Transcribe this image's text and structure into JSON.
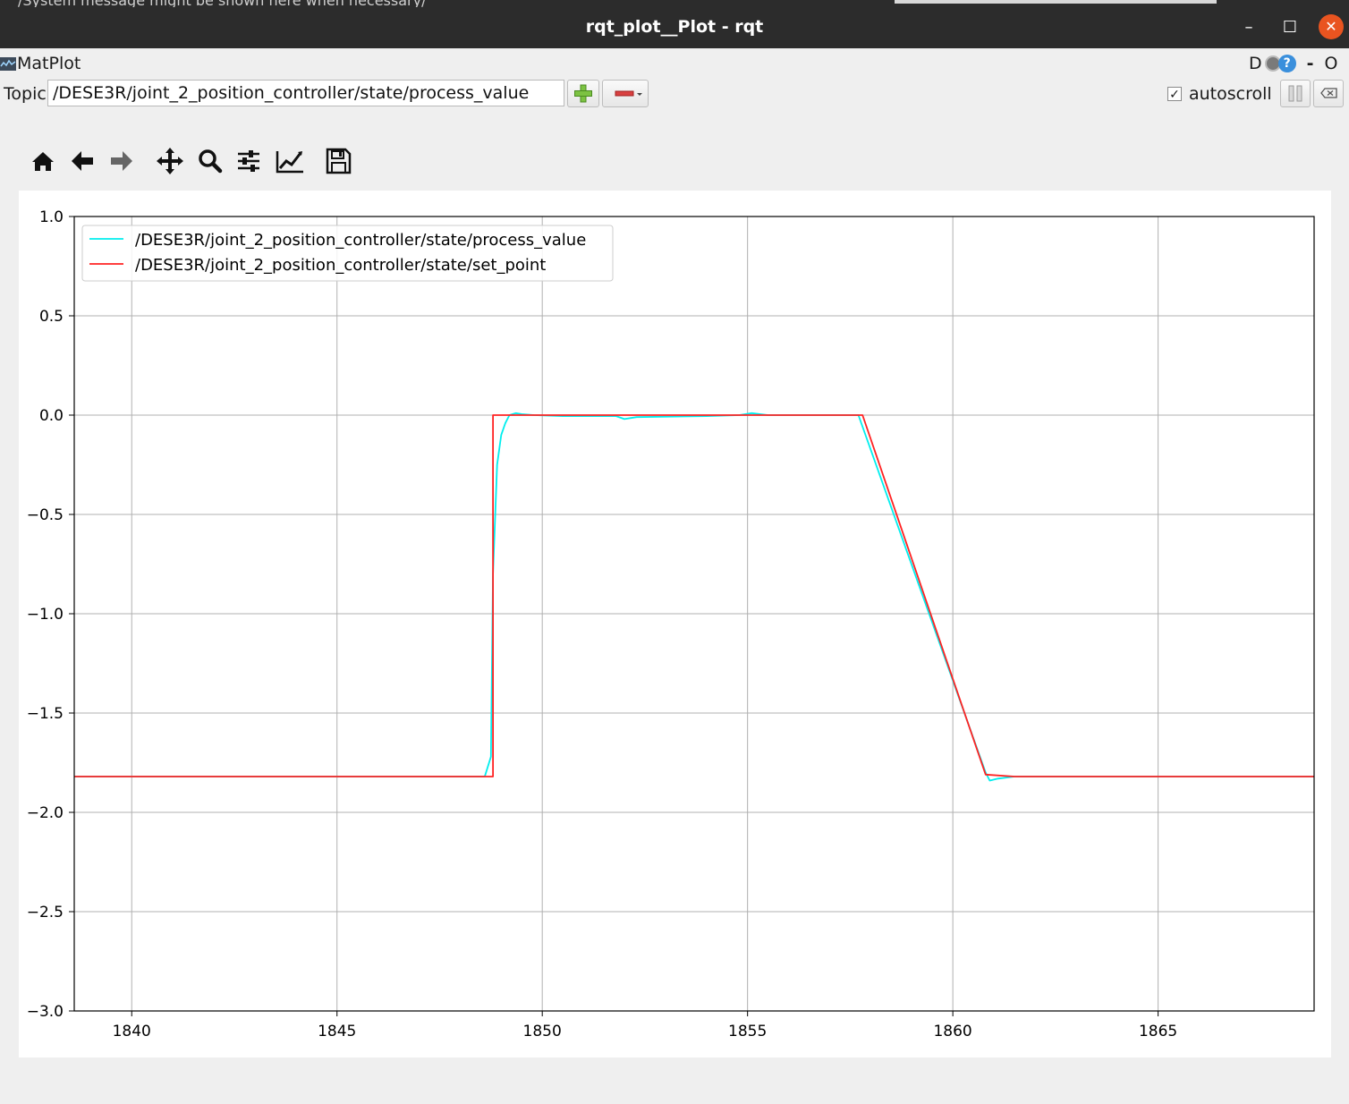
{
  "system_bar": {
    "message": "/System message might be shown here when necessary/"
  },
  "window": {
    "title": "rqt_plot__Plot - rqt",
    "minimize": "–",
    "maximize": "☐",
    "close": "✕"
  },
  "plugin": {
    "name": "MatPlot",
    "icon": "matplot-icon",
    "right_label": "D",
    "right_dash": "-",
    "right_o": "O"
  },
  "topic_row": {
    "label": "Topic",
    "value": "/DESE3R/joint_2_position_controller/state/process_value",
    "add_icon": "plus-icon",
    "remove_icon": "minus-dropdown-icon",
    "autoscroll_label": "autoscroll",
    "autoscroll_checked": true,
    "checkmark": "✓",
    "pause_icon": "pause-icon",
    "clear_icon": "clear-icon"
  },
  "toolbar": {
    "icons": [
      "home-icon",
      "back-arrow-icon",
      "forward-arrow-icon",
      "pan-icon",
      "zoom-icon",
      "configure-subplots-icon",
      "edit-curves-icon",
      "save-icon"
    ]
  },
  "chart_data": {
    "type": "line",
    "title": "",
    "xlabel": "",
    "ylabel": "",
    "xlim": [
      1838.6,
      1868.8
    ],
    "ylim": [
      -3.0,
      1.0
    ],
    "xticks": [
      1840,
      1845,
      1850,
      1855,
      1860,
      1865
    ],
    "xtick_labels": [
      "1840",
      "1845",
      "1850",
      "1855",
      "1860",
      "1865"
    ],
    "yticks": [
      1.0,
      0.5,
      0.0,
      -0.5,
      -1.0,
      -1.5,
      -2.0,
      -2.5,
      -3.0
    ],
    "ytick_labels": [
      "1.0",
      "0.5",
      "0.0",
      "−0.5",
      "−1.0",
      "−1.5",
      "−2.0",
      "−2.5",
      "−3.0"
    ],
    "grid": true,
    "legend_position": "top-left",
    "series": [
      {
        "name": "/DESE3R/joint_2_position_controller/state/process_value",
        "color": "#00eeee",
        "x": [
          1838.6,
          1848.6,
          1848.75,
          1848.8,
          1848.9,
          1849.0,
          1849.1,
          1849.2,
          1849.35,
          1849.5,
          1849.8,
          1850.5,
          1851.8,
          1852.0,
          1852.3,
          1854.0,
          1854.8,
          1855.1,
          1855.5,
          1857.7,
          1860.8,
          1860.9,
          1861.1,
          1861.5,
          1868.8
        ],
        "y": [
          -1.82,
          -1.82,
          -1.72,
          -0.8,
          -0.25,
          -0.1,
          -0.04,
          0.0,
          0.01,
          0.005,
          0.0,
          -0.005,
          -0.005,
          -0.02,
          -0.01,
          -0.005,
          0.0,
          0.01,
          0.0,
          0.0,
          -1.8,
          -1.84,
          -1.83,
          -1.82,
          -1.82
        ]
      },
      {
        "name": "/DESE3R/joint_2_position_controller/state/set_point",
        "color": "#ff2222",
        "x": [
          1838.6,
          1848.8,
          1848.8,
          1857.8,
          1860.8,
          1861.5,
          1868.8
        ],
        "y": [
          -1.82,
          -1.82,
          0.0,
          0.0,
          -1.81,
          -1.82,
          -1.82
        ]
      }
    ]
  }
}
